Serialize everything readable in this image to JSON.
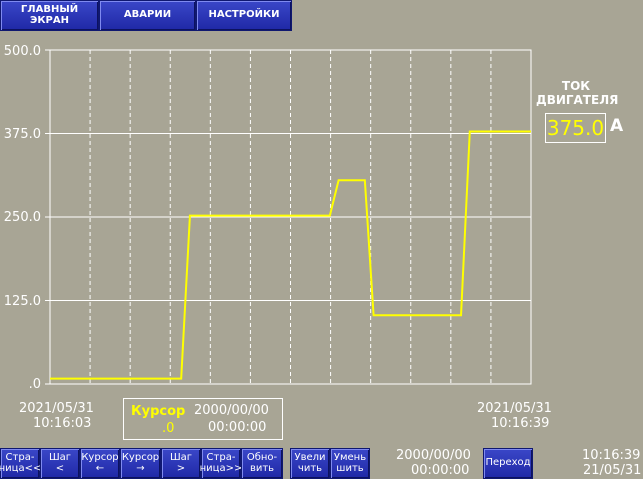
{
  "top_nav": [
    {
      "label": "ГЛАВНЫЙ\nЭКРАН"
    },
    {
      "label": "АВАРИИ"
    },
    {
      "label": "НАСТРОЙКИ"
    }
  ],
  "chart_data": {
    "type": "line",
    "ylim": [
      0,
      500
    ],
    "y_ticks": [
      "500.0",
      "375.0",
      "250.0",
      "125.0",
      ".0"
    ],
    "x_time_range": [
      "10:16:03",
      "10:16:39"
    ],
    "series": [
      {
        "color": "#ffff00",
        "points": [
          [
            10.16,
            8
          ],
          [
            10.31,
            8
          ],
          [
            10.32,
            252
          ],
          [
            10.48,
            252
          ],
          [
            10.49,
            305
          ],
          [
            10.52,
            305
          ],
          [
            10.53,
            103
          ],
          [
            10.63,
            103
          ],
          [
            10.64,
            378
          ],
          [
            10.71,
            378
          ]
        ]
      }
    ]
  },
  "series_label": {
    "title": "ТОК\nДВИГАТЕЛЯ",
    "value": "375.0",
    "unit": "A"
  },
  "x_start": {
    "date": "2021/05/31",
    "time": "10:16:03"
  },
  "x_end": {
    "date": "2021/05/31",
    "time": "10:16:39"
  },
  "cursor": {
    "label": "Курсор",
    "value": ".0",
    "date": "2000/00/00",
    "time": "00:00:00"
  },
  "jump_datetime": {
    "date": "2000/00/00",
    "time": "00:00:00"
  },
  "bottom_buttons": [
    {
      "label": "Стра-\nница<<"
    },
    {
      "label": "Шаг\n<"
    },
    {
      "label": "Курсор\n←"
    },
    {
      "label": "Курсор\n→"
    },
    {
      "label": "Шаг\n>"
    },
    {
      "label": "Стра-\nница>>"
    },
    {
      "label": "Обно-\nвить"
    },
    {
      "label": "Увели\nчить"
    },
    {
      "label": "Умень\nшить"
    },
    {
      "label": "Переход"
    }
  ],
  "clock": {
    "time": "10:16:39",
    "date": "21/05/31"
  }
}
